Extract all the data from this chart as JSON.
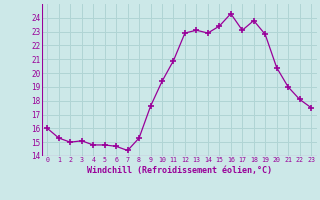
{
  "xlabel": "Windchill (Refroidissement éolien,°C)",
  "x_values": [
    0,
    1,
    2,
    3,
    4,
    5,
    6,
    7,
    8,
    9,
    10,
    11,
    12,
    13,
    14,
    15,
    16,
    17,
    18,
    19,
    20,
    21,
    22,
    23
  ],
  "y_values": [
    16.0,
    15.3,
    15.0,
    15.1,
    14.8,
    14.8,
    14.7,
    14.4,
    15.3,
    17.6,
    19.4,
    20.9,
    22.9,
    23.1,
    22.9,
    23.4,
    24.3,
    23.1,
    23.8,
    22.8,
    20.4,
    19.0,
    18.1,
    17.5
  ],
  "ylim": [
    14,
    25
  ],
  "yticks": [
    14,
    15,
    16,
    17,
    18,
    19,
    20,
    21,
    22,
    23,
    24
  ],
  "line_color": "#990099",
  "marker_color": "#990099",
  "bg_color": "#cce8e8",
  "grid_color": "#b0d4d4",
  "tick_color": "#990099",
  "label_color": "#990099"
}
